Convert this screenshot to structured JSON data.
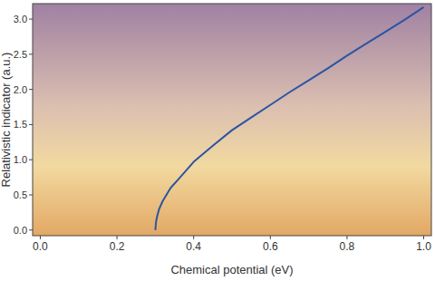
{
  "chart_data": {
    "type": "line",
    "x_label": "Chemical potential (eV)",
    "y_label": "Relativistic indicator (a.u.)",
    "x": [
      0.3,
      0.302,
      0.305,
      0.31,
      0.32,
      0.34,
      0.36,
      0.4,
      0.45,
      0.5,
      0.55,
      0.6,
      0.65,
      0.7,
      0.75,
      0.8,
      0.85,
      0.9,
      0.95,
      1.0
    ],
    "values": [
      0,
      0.12,
      0.2,
      0.3,
      0.42,
      0.6,
      0.72,
      0.97,
      1.2,
      1.42,
      1.6,
      1.78,
      1.96,
      2.13,
      2.3,
      2.48,
      2.65,
      2.82,
      2.99,
      3.17
    ],
    "color": "#2b55a3",
    "xlim": [
      -0.02,
      1.02
    ],
    "ylim": [
      -0.08,
      3.22
    ],
    "xticks": [
      {
        "value": 0,
        "label": "0.0"
      },
      0.2,
      0.4,
      0.6,
      0.8,
      {
        "value": 1,
        "label": "1.0"
      }
    ],
    "yticks": [
      {
        "value": 0,
        "label": "0.0"
      },
      0.5,
      {
        "value": 1,
        "label": "1.0"
      },
      1.5,
      {
        "value": 2,
        "label": "2.0"
      },
      2.5,
      {
        "value": 3,
        "label": "3.0"
      }
    ],
    "grid": false
  }
}
